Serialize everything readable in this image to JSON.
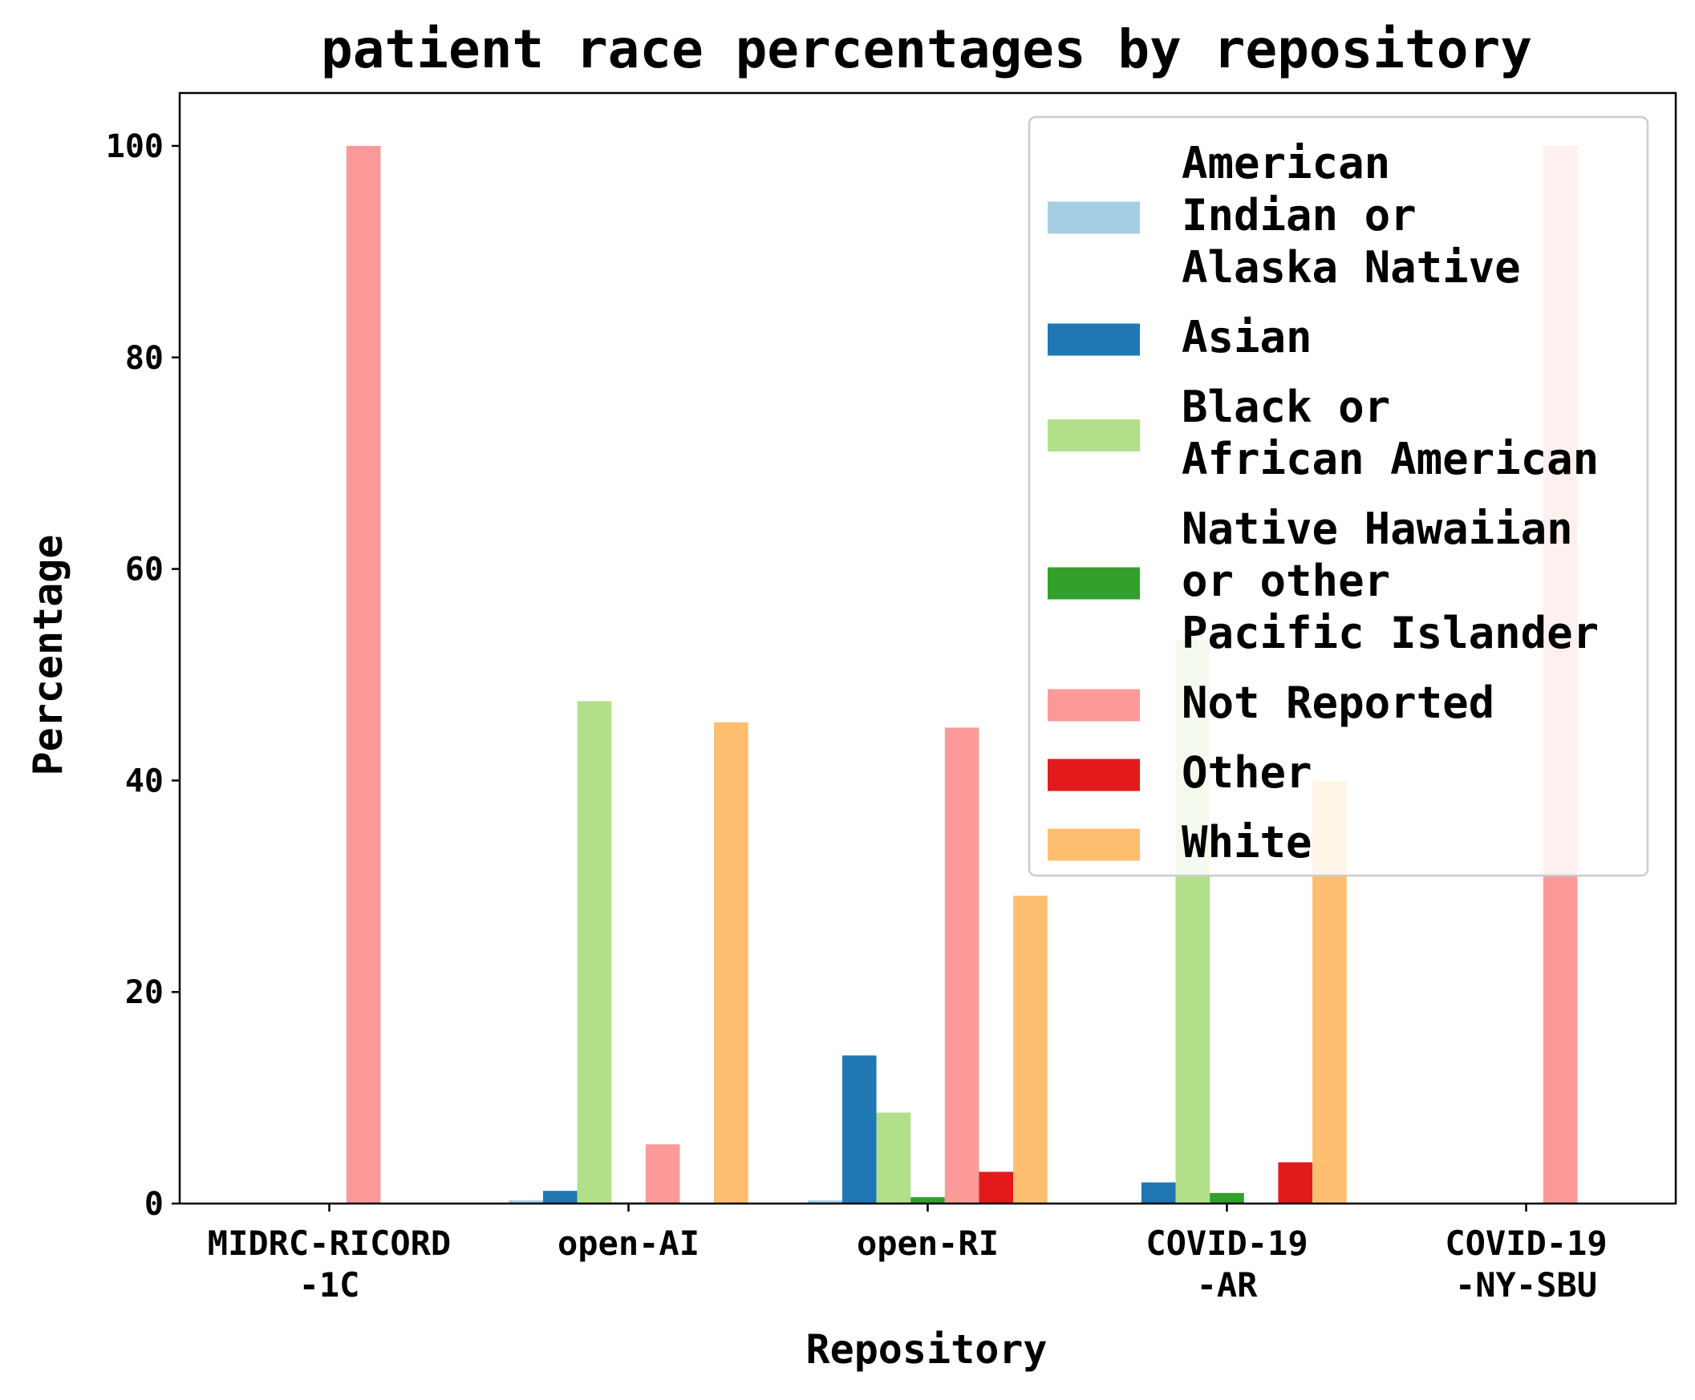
{
  "chart_data": {
    "type": "bar",
    "title": "patient race percentages by repository",
    "xlabel": "Repository",
    "ylabel": "Percentage",
    "ylim": [
      0,
      105
    ],
    "yticks": [
      0,
      20,
      40,
      60,
      80,
      100
    ],
    "grid": false,
    "legend_position": "top-right",
    "categories": [
      [
        "MIDRC-RICORD",
        "-1C"
      ],
      [
        "open-AI"
      ],
      [
        "open-RI"
      ],
      [
        "COVID-19",
        "-AR"
      ],
      [
        "COVID-19",
        "-NY-SBU"
      ]
    ],
    "series": [
      {
        "name": "American Indian or Alaska Native",
        "legend_lines": [
          "American",
          "Indian or",
          "Alaska Native"
        ],
        "color": "#a6cee3",
        "values": [
          0,
          0.3,
          0.3,
          0,
          0
        ]
      },
      {
        "name": "Asian",
        "legend_lines": [
          "Asian"
        ],
        "color": "#1f78b4",
        "values": [
          0,
          1.2,
          14.0,
          2.0,
          0
        ]
      },
      {
        "name": "Black or African American",
        "legend_lines": [
          "Black or",
          "African American"
        ],
        "color": "#b2df8a",
        "values": [
          0,
          47.5,
          8.6,
          53.3,
          0
        ]
      },
      {
        "name": "Native Hawaiian or other Pacific Islander",
        "legend_lines": [
          "Native Hawaiian",
          "or other",
          "Pacific Islander"
        ],
        "color": "#33a02c",
        "values": [
          0,
          0.1,
          0.6,
          1.0,
          0
        ]
      },
      {
        "name": "Not Reported",
        "legend_lines": [
          "Not Reported"
        ],
        "color": "#fb9a99",
        "values": [
          100,
          5.6,
          45.0,
          0,
          100
        ]
      },
      {
        "name": "Other",
        "legend_lines": [
          "Other"
        ],
        "color": "#e31a1c",
        "values": [
          0,
          0,
          3.0,
          3.9,
          0
        ]
      },
      {
        "name": "White",
        "legend_lines": [
          "White"
        ],
        "color": "#fdbf6f",
        "values": [
          0,
          45.5,
          29.1,
          40.0,
          0
        ]
      }
    ]
  }
}
